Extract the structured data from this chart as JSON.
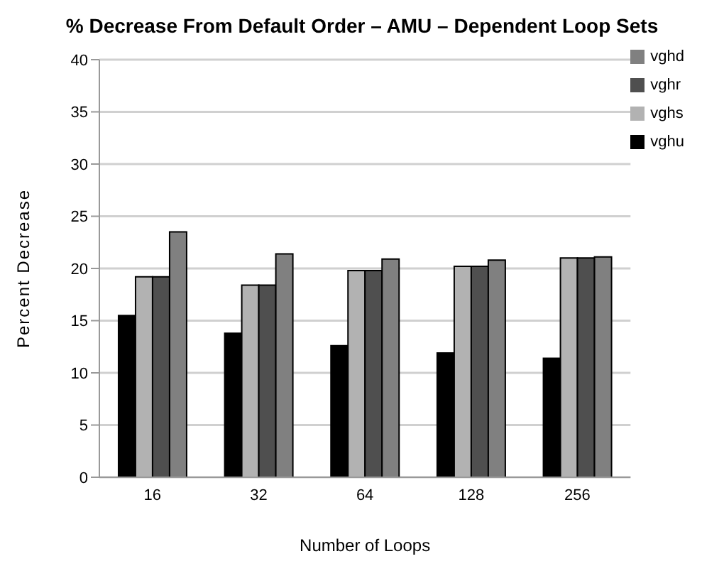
{
  "chart_data": {
    "type": "bar",
    "title": "% Decrease From Default Order – AMU – Dependent Loop Sets",
    "xlabel": "Number of Loops",
    "ylabel": "Percent Decrease",
    "categories": [
      "16",
      "32",
      "64",
      "128",
      "256"
    ],
    "series": [
      {
        "name": "vghu",
        "color": "#000000",
        "values": [
          15.5,
          13.8,
          12.6,
          11.9,
          11.4
        ]
      },
      {
        "name": "vghs",
        "color": "#b2b2b2",
        "values": [
          19.2,
          18.4,
          19.8,
          20.2,
          21.0
        ]
      },
      {
        "name": "vghr",
        "color": "#4f4f4f",
        "values": [
          19.2,
          18.4,
          19.8,
          20.2,
          21.0
        ]
      },
      {
        "name": "vghd",
        "color": "#808080",
        "values": [
          23.5,
          21.4,
          20.9,
          20.8,
          21.1
        ]
      }
    ],
    "ylim": [
      0,
      40
    ],
    "yticks": [
      0,
      5,
      10,
      15,
      20,
      25,
      30,
      35,
      40
    ],
    "grid": "y",
    "legend": "top right"
  }
}
